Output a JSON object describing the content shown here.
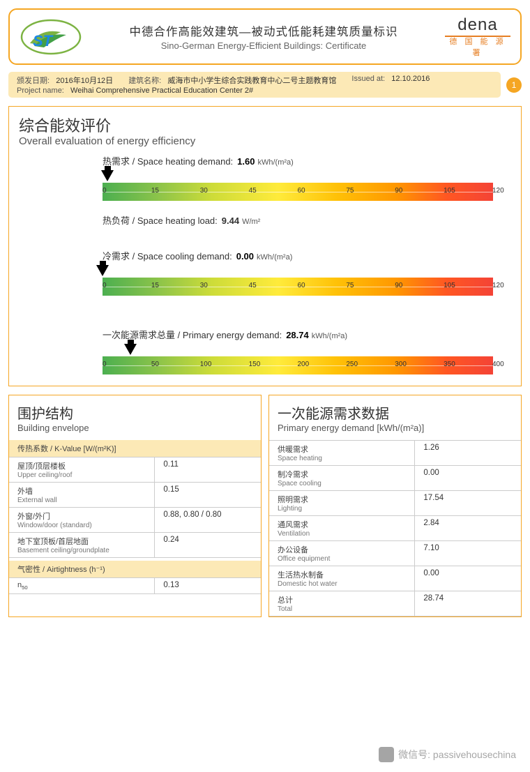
{
  "header": {
    "title_zh": "中德合作高能效建筑—被动式低能耗建筑质量标识",
    "title_en": "Sino-German Energy-Efficient Buildings: Certificate",
    "dena": "dena",
    "dena_sub": "德 国 能 源 署"
  },
  "info": {
    "issue_label_zh": "颁发日期:",
    "issue_label_en": "Issued at:",
    "issue_date_zh": "2016年10月12日",
    "issue_date_en": "12.10.2016",
    "building_label_zh": "建筑名称:",
    "building_label_en": "Project name:",
    "building_name_zh": "威海市中小学生综合实践教育中心二号主题教育馆",
    "building_name_en": "Weihai Comprehensive Practical Education Center 2#",
    "page": "1"
  },
  "overall": {
    "title_zh": "综合能效评价",
    "title_en": "Overall evaluation of energy efficiency",
    "heat_demand": {
      "label": "热需求 / Space heating demand:",
      "value": "1.60",
      "unit": "kWh/(m²a)",
      "ticks": [
        "0",
        "15",
        "30",
        "45",
        "60",
        "75",
        "90",
        "105",
        "120"
      ],
      "max": 120,
      "pointer_pct": 1.33
    },
    "heat_load": {
      "label": "热负荷 / Space heating load:",
      "value": "9.44",
      "unit": "W/m²"
    },
    "cool_demand": {
      "label": "冷需求 / Space cooling demand:",
      "value": "0.00",
      "unit": "kWh/(m²a)",
      "ticks": [
        "0",
        "15",
        "30",
        "45",
        "60",
        "75",
        "90",
        "105",
        "120"
      ],
      "max": 120,
      "pointer_pct": 0
    },
    "primary": {
      "label": "一次能源需求总量 / Primary energy demand:",
      "value": "28.74",
      "unit": "kWh/(m²a)",
      "ticks": [
        "0",
        "50",
        "100",
        "150",
        "200",
        "250",
        "300",
        "350",
        "400"
      ],
      "max": 400,
      "pointer_pct": 7.18
    }
  },
  "envelope": {
    "title_zh": "围护结构",
    "title_en": "Building envelope",
    "kvalue_head": "传热系数 / K-Value [W/(m²K)]",
    "rows": [
      {
        "zh": "屋顶/顶层楼板",
        "en": "Upper ceiling/roof",
        "val": "0.11"
      },
      {
        "zh": "外墙",
        "en": "External wall",
        "val": "0.15"
      },
      {
        "zh": "外窗/外门",
        "en": "Window/door (standard)",
        "val": "0.88, 0.80 / 0.80"
      },
      {
        "zh": "地下室顶板/首层地面",
        "en": "Basement ceiling/groundplate",
        "val": "0.24"
      }
    ],
    "airtight_head": "气密性 / Airtightness (h⁻¹)",
    "n50_label": "n₅₀",
    "n50_val": "0.13"
  },
  "ped": {
    "title_zh": "一次能源需求数据",
    "title_en": "Primary energy demand [kWh/(m²a)]",
    "rows": [
      {
        "zh": "供暖需求",
        "en": "Space heating",
        "val": "1.26"
      },
      {
        "zh": "制冷需求",
        "en": "Space cooling",
        "val": "0.00"
      },
      {
        "zh": "照明需求",
        "en": "Lighting",
        "val": "17.54"
      },
      {
        "zh": "通风需求",
        "en": "Ventilation",
        "val": "2.84"
      },
      {
        "zh": "办公设备",
        "en": "Office equipment",
        "val": "7.10"
      },
      {
        "zh": "生活热水制备",
        "en": "Domestic hot water",
        "val": "0.00"
      },
      {
        "zh": "总计",
        "en": "Total",
        "val": "28.74"
      }
    ]
  },
  "watermark": "微信号: passivehousechina",
  "colors": {
    "accent": "#f5a623",
    "pill_bg": "#fce9b6",
    "gradient": [
      "#4caf50",
      "#8bc34a",
      "#cddc39",
      "#ffeb3b",
      "#ffc107",
      "#ff9800",
      "#ff5722",
      "#f44336"
    ]
  }
}
